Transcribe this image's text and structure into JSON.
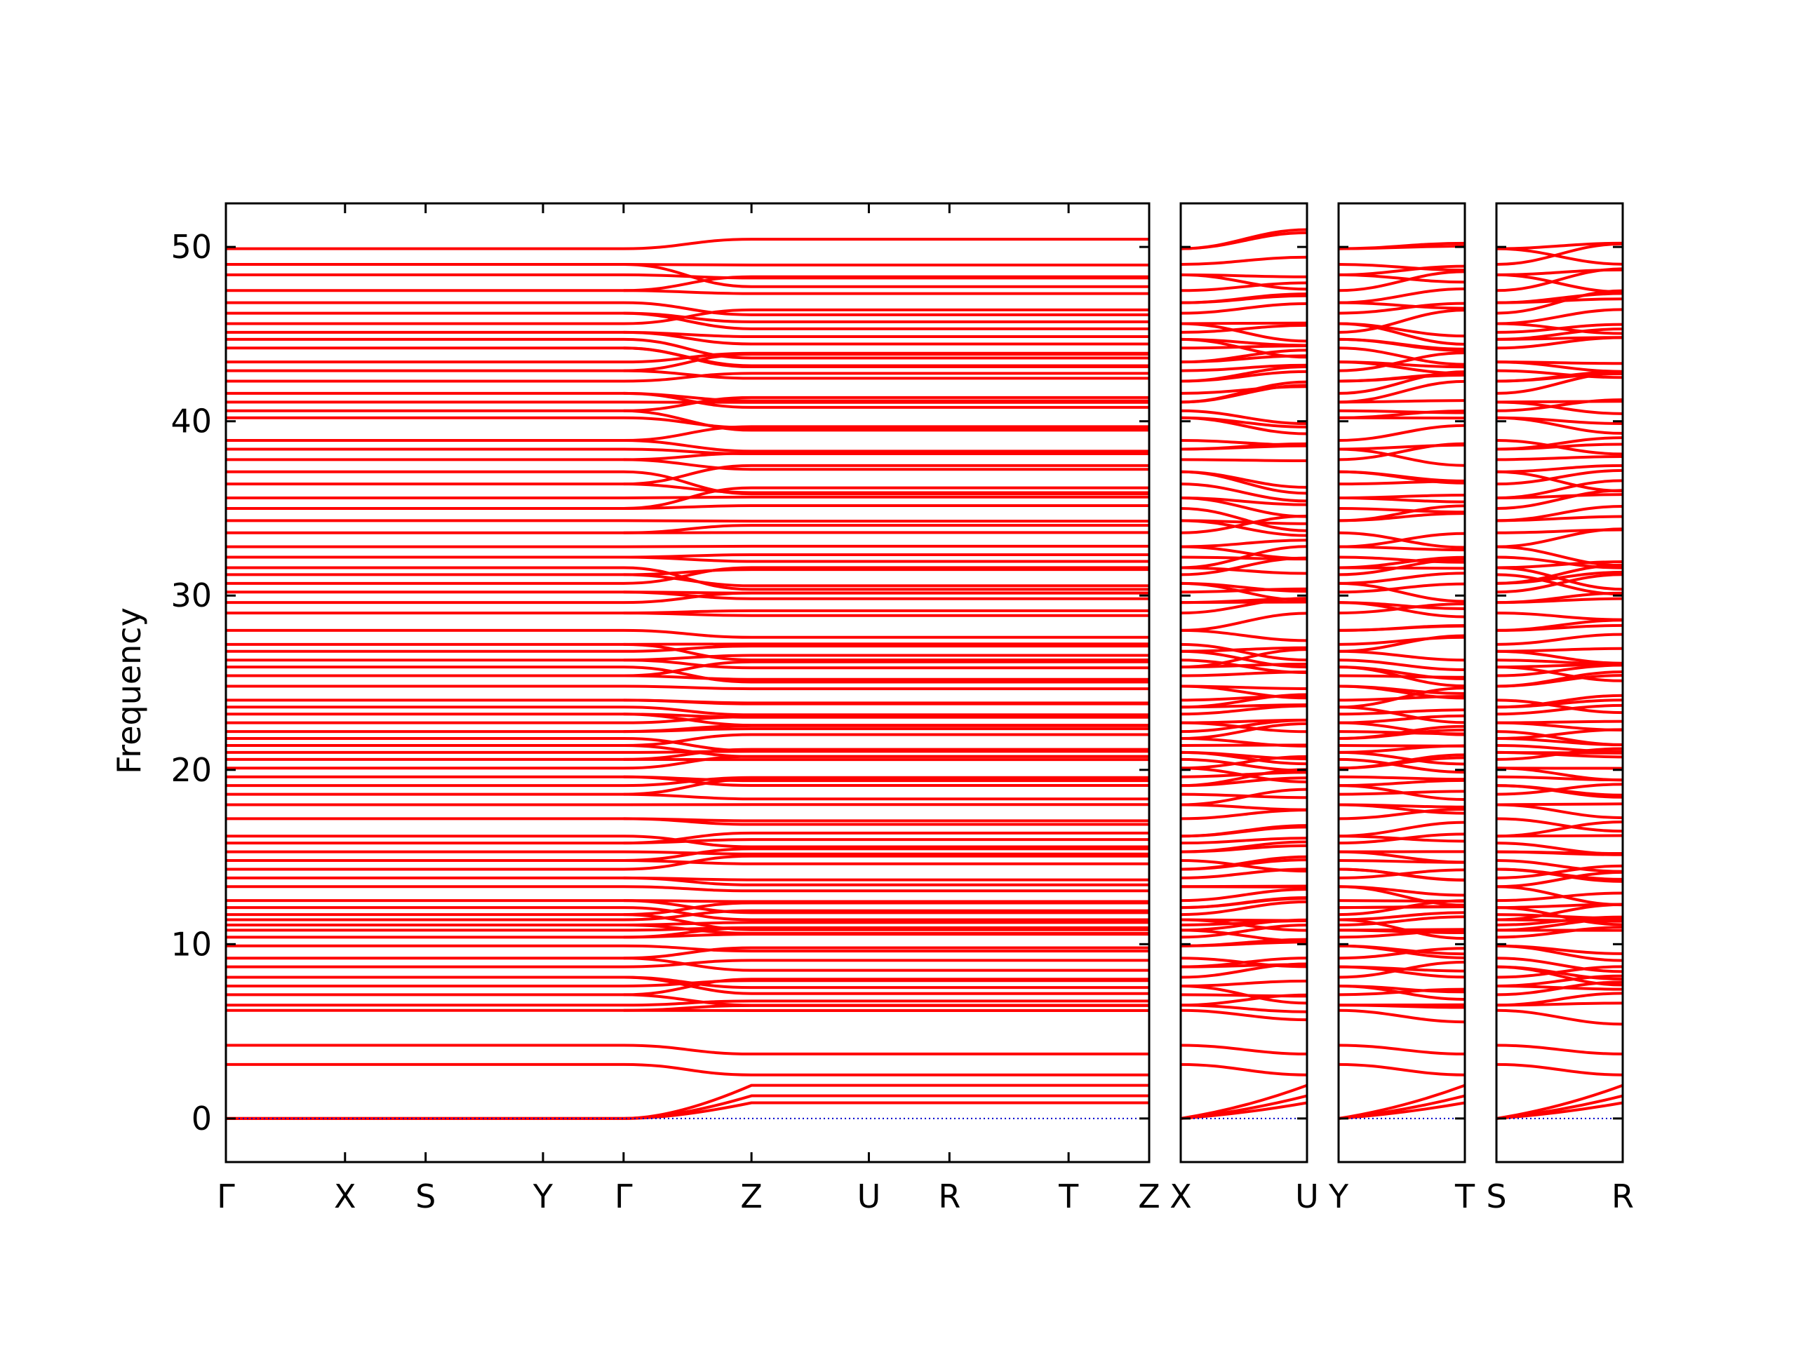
{
  "chart_data": {
    "type": "line",
    "ylabel": "Frequency",
    "ylim": [
      -2.5,
      52.5
    ],
    "yticks": [
      0,
      10,
      20,
      30,
      40,
      50
    ],
    "grid": false,
    "legend": "none",
    "colors": {
      "bands": "#ff0000",
      "zero_line": "#0000cc",
      "axes": "#000000"
    },
    "panels": [
      {
        "path": [
          "Γ",
          "X",
          "S",
          "Y",
          "Γ",
          "Z",
          "U",
          "R",
          "T",
          "Z"
        ],
        "distances": [
          0,
          0.68,
          0.46,
          0.67,
          0.46,
          0.73,
          0.67,
          0.46,
          0.68,
          0.46
        ]
      },
      {
        "path": [
          "X",
          "U"
        ],
        "distances": [
          0,
          0.73
        ]
      },
      {
        "path": [
          "Y",
          "T"
        ],
        "distances": [
          0,
          0.73
        ]
      },
      {
        "path": [
          "S",
          "R"
        ],
        "distances": [
          0,
          0.73
        ]
      }
    ],
    "optical_band_levels_at_gamma": [
      6.2,
      6.5,
      7.1,
      7.6,
      8.1,
      8.7,
      9.2,
      9.9,
      10.4,
      10.8,
      11.1,
      11.4,
      11.7,
      12.1,
      12.5,
      13.3,
      13.8,
      14.3,
      14.8,
      15.3,
      15.8,
      16.2,
      17.2,
      18.0,
      18.6,
      19.1,
      19.6,
      20.1,
      20.6,
      21.0,
      21.4,
      21.8,
      22.2,
      22.7,
      23.2,
      23.6,
      24.0,
      24.8,
      25.4,
      25.9,
      26.3,
      26.8,
      27.2,
      28.0,
      29.0,
      29.6,
      30.2,
      30.7,
      31.2,
      31.6,
      32.2,
      32.8,
      33.6,
      34.3,
      35.0,
      35.6,
      36.4,
      37.1,
      37.8,
      38.4,
      38.9,
      40.2,
      40.6,
      41.1,
      41.6,
      42.3,
      42.9,
      43.4,
      44.2,
      44.7,
      45.1,
      45.6,
      46.2,
      46.8,
      47.5,
      48.4,
      49.0,
      49.9
    ],
    "acoustic_bands": {
      "gamma": [
        0,
        0,
        0,
        3.1,
        4.2
      ],
      "z": [
        0.9,
        1.3,
        1.9,
        2.5,
        3.7
      ]
    },
    "zero_reference_line": 0
  }
}
